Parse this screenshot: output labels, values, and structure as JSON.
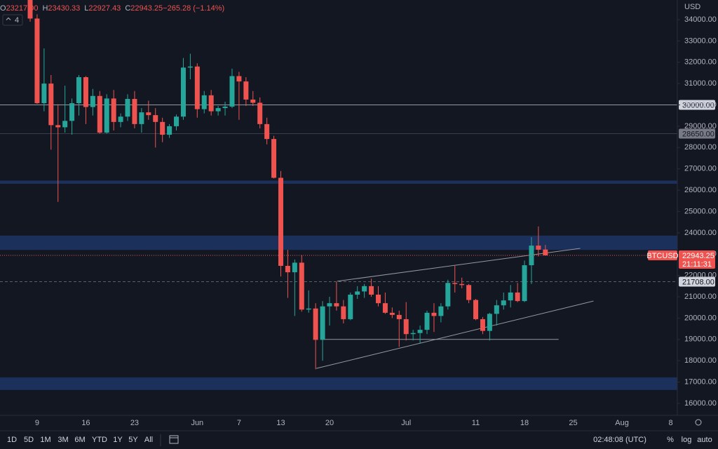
{
  "chart_data": {
    "type": "candlestick",
    "ohlc_header": [
      {
        "label": "O",
        "value": "23217.00"
      },
      {
        "label": "H",
        "value": "23430.33"
      },
      {
        "label": "L",
        "value": "22927.43"
      },
      {
        "label": "C",
        "value": "22943.25"
      },
      {
        "label": "",
        "value": "−265.28 (−1.14%)"
      }
    ],
    "indicator_count": 4,
    "currency": "USD",
    "categories": [
      null,
      "9",
      null,
      null,
      null,
      null,
      null,
      null,
      "16",
      null,
      null,
      null,
      null,
      null,
      null,
      "23",
      null,
      null,
      null,
      null,
      null,
      null,
      null,
      null,
      "Jun",
      null,
      null,
      null,
      null,
      null,
      "7",
      null,
      null,
      null,
      null,
      null,
      "13",
      null,
      null,
      null,
      null,
      null,
      null,
      "20",
      null,
      null,
      null,
      null,
      null,
      null,
      null,
      null,
      null,
      null,
      "Jul",
      null,
      null,
      null,
      null,
      null,
      null,
      null,
      null,
      null,
      "11",
      null,
      null,
      null,
      null,
      null,
      null,
      "18",
      null,
      null,
      null,
      null,
      null,
      null,
      "25",
      null,
      null,
      null,
      null,
      null,
      null,
      "Aug",
      null,
      null,
      null,
      null,
      null,
      null,
      "8",
      null
    ],
    "open": [
      35500,
      34050,
      30080,
      31000,
      29050,
      28950,
      29250,
      30080,
      31300,
      29900,
      30420,
      28700,
      30300,
      29200,
      29450,
      30280,
      29100,
      29650,
      29520,
      29200,
      28600,
      29000,
      29450,
      31750,
      31800,
      29800,
      30450,
      29700,
      29850,
      29920,
      31350,
      31100,
      30250,
      30100,
      29100,
      28400,
      26580,
      22450,
      22150,
      22600,
      20400,
      20450,
      18980,
      20550,
      20700,
      20550,
      19950,
      21100,
      21250,
      21500,
      21100,
      20700,
      20250,
      20150,
      19950,
      19250,
      19300,
      19450,
      20250,
      20100,
      20550,
      21650,
      21600,
      21550,
      20850,
      19950,
      19400,
      20200,
      20600,
      20830,
      21200,
      20800,
      22480,
      23400,
      23217,
      null,
      null,
      null,
      null,
      null,
      null,
      null,
      null,
      null,
      null,
      null,
      null,
      null,
      null,
      null,
      null,
      null,
      null,
      null
    ],
    "high": [
      35800,
      34250,
      32650,
      31400,
      30030,
      30900,
      30300,
      31400,
      31350,
      30750,
      30650,
      30500,
      30700,
      29600,
      30500,
      30650,
      29850,
      30200,
      29850,
      29400,
      29100,
      29550,
      32200,
      32400,
      31950,
      30650,
      30700,
      29950,
      30150,
      31700,
      31550,
      31300,
      30650,
      30350,
      29400,
      28550,
      26900,
      23200,
      22750,
      22950,
      21300,
      20700,
      20800,
      21000,
      21700,
      20850,
      21200,
      21500,
      21600,
      21850,
      21500,
      21200,
      20500,
      20350,
      20750,
      19450,
      19650,
      20350,
      20700,
      20700,
      21800,
      22450,
      21900,
      21600,
      20900,
      20050,
      20250,
      20850,
      21200,
      21550,
      21650,
      22700,
      23800,
      24300,
      23430.33,
      null,
      null,
      null,
      null,
      null,
      null,
      null,
      null,
      null,
      null,
      null,
      null,
      null,
      null,
      null,
      null,
      null,
      null,
      null
    ],
    "low": [
      33900,
      30050,
      29700,
      27900,
      25450,
      28700,
      28600,
      29500,
      29100,
      29500,
      28650,
      28650,
      28800,
      28950,
      29250,
      28900,
      28700,
      29300,
      28000,
      28250,
      28450,
      28800,
      29300,
      31200,
      29400,
      29600,
      29500,
      29500,
      29500,
      29850,
      29300,
      29950,
      29950,
      28900,
      28150,
      26550,
      21950,
      20950,
      20100,
      20300,
      20250,
      17600,
      18000,
      19650,
      20350,
      19750,
      19900,
      20900,
      20950,
      21000,
      20550,
      20200,
      20000,
      18650,
      18950,
      18950,
      18800,
      19250,
      19350,
      19800,
      20400,
      21200,
      21400,
      20700,
      19900,
      19250,
      18950,
      19650,
      20400,
      20500,
      20750,
      20750,
      21600,
      22900,
      22927.43,
      null,
      null,
      null,
      null,
      null,
      null,
      null,
      null,
      null,
      null,
      null,
      null,
      null,
      null,
      null,
      null,
      null,
      null,
      null
    ],
    "close": [
      34050,
      30080,
      31000,
      29050,
      28950,
      29250,
      30080,
      31300,
      29900,
      30420,
      28700,
      30300,
      29200,
      29450,
      30280,
      29100,
      29650,
      29520,
      29200,
      28600,
      29000,
      29450,
      31750,
      31800,
      29800,
      30450,
      29700,
      29850,
      29920,
      31350,
      31100,
      30250,
      30100,
      29100,
      28400,
      26580,
      22450,
      22150,
      22600,
      20400,
      20450,
      18980,
      20550,
      20700,
      20550,
      19950,
      21100,
      21250,
      21500,
      21100,
      20700,
      20250,
      20150,
      19950,
      19250,
      19300,
      19450,
      20250,
      20100,
      20550,
      21650,
      21600,
      21550,
      20850,
      19950,
      19400,
      20200,
      20600,
      20830,
      21200,
      20800,
      22480,
      23400,
      23208.53,
      22943.25,
      null,
      null,
      null,
      null,
      null,
      null,
      null,
      null,
      null,
      null,
      null,
      null,
      null,
      null,
      null,
      null,
      null,
      null,
      null
    ],
    "up_color": "#26a69a",
    "down_color": "#ef5350",
    "ylim": [
      15440,
      34920
    ],
    "yticks": [
      {
        "value": 16000,
        "label": "16000.00"
      },
      {
        "value": 17000,
        "label": "17000.00"
      },
      {
        "value": 18000,
        "label": "18000.00"
      },
      {
        "value": 19000,
        "label": "19000.00"
      },
      {
        "value": 20000,
        "label": "20000.00"
      },
      {
        "value": 21000,
        "label": "21000.00"
      },
      {
        "value": 22000,
        "label": "22000.00"
      },
      {
        "value": 23000,
        "label": "23000.00"
      },
      {
        "value": 24000,
        "label": "24000.00"
      },
      {
        "value": 25000,
        "label": "25000.00"
      },
      {
        "value": 26000,
        "label": "26000.00"
      },
      {
        "value": 27000,
        "label": "27000.00"
      },
      {
        "value": 28000,
        "label": "28000.00"
      },
      {
        "value": 29000,
        "label": "29000.00"
      },
      {
        "value": 30000,
        "label": "30000.00"
      },
      {
        "value": 31000,
        "label": "31000.00"
      },
      {
        "value": 32000,
        "label": "32000.00"
      },
      {
        "value": 33000,
        "label": "33000.00"
      },
      {
        "value": 34000,
        "label": "34000.00"
      }
    ],
    "zones": [
      {
        "from": 26300,
        "to": 26450,
        "color": "#1f3566"
      },
      {
        "from": 23200,
        "to": 23870,
        "color": "#1f3566"
      },
      {
        "from": 16630,
        "to": 17220,
        "color": "#1f3566"
      }
    ],
    "levels": [
      {
        "value": 30000,
        "label": "30000.00",
        "style": "solid"
      },
      {
        "value": 28650,
        "label": "28650.00",
        "style": "faint"
      },
      {
        "value": 21708,
        "label": "21708.00",
        "style": "dashed"
      }
    ],
    "trendlines": [
      {
        "x": [
          44.1,
          79.0
        ],
        "y": [
          21730,
          23270
        ]
      },
      {
        "x": [
          41.1,
          80.9
        ],
        "y": [
          17640,
          20800
        ]
      },
      {
        "x": [
          42,
          75.9
        ],
        "y": [
          19000,
          19000
        ]
      }
    ],
    "price_tag": {
      "symbol": "BTCUSD",
      "price": 22943.25,
      "countdown": "21:11:31"
    }
  },
  "toolbar": {
    "ranges": [
      "1D",
      "5D",
      "1M",
      "3M",
      "6M",
      "YTD",
      "1Y",
      "5Y",
      "All"
    ],
    "clock": "02:48:08 (UTC)",
    "options": [
      "%",
      "log",
      "auto"
    ]
  }
}
